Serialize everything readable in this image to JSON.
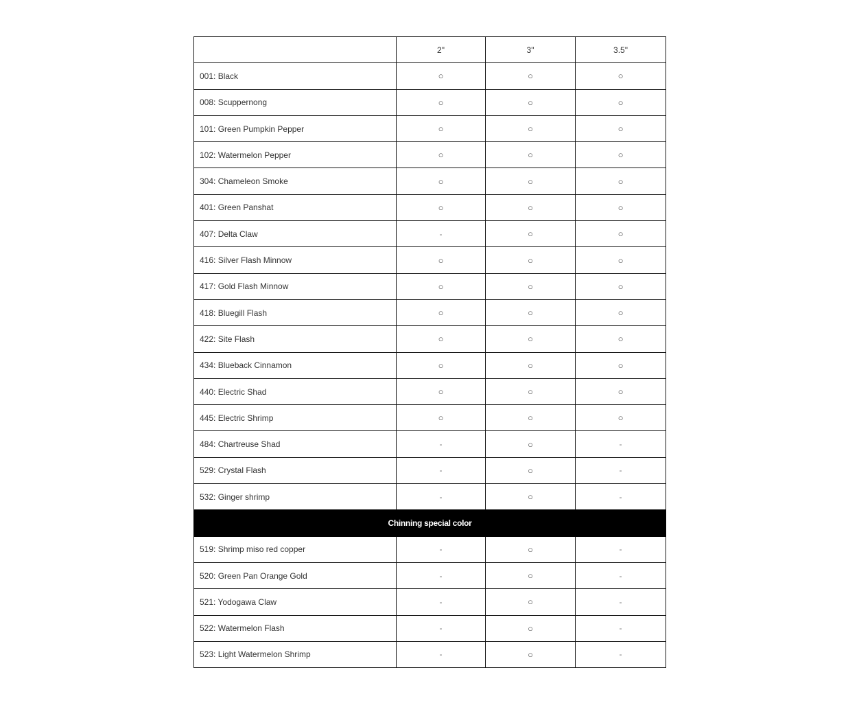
{
  "table": {
    "headers": [
      "",
      "2\"",
      "3\"",
      "3.5\""
    ],
    "rows": [
      {
        "name": "001: Black",
        "values": [
          "○",
          "○",
          "○"
        ]
      },
      {
        "name": "008: Scuppernong",
        "values": [
          "○",
          "○",
          "○"
        ]
      },
      {
        "name": "101: Green Pumpkin Pepper",
        "values": [
          "○",
          "○",
          "○"
        ]
      },
      {
        "name": "102: Watermelon Pepper",
        "values": [
          "○",
          "○",
          "○"
        ]
      },
      {
        "name": "304: Chameleon Smoke",
        "values": [
          "○",
          "○",
          "○"
        ]
      },
      {
        "name": "401: Green Panshat",
        "values": [
          "○",
          "○",
          "○"
        ]
      },
      {
        "name": "407: Delta Claw",
        "values": [
          "-",
          "○",
          "○"
        ]
      },
      {
        "name": "416: Silver Flash Minnow",
        "values": [
          "○",
          "○",
          "○"
        ]
      },
      {
        "name": "417: Gold Flash Minnow",
        "values": [
          "○",
          "○",
          "○"
        ]
      },
      {
        "name": "418: Bluegill Flash",
        "values": [
          "○",
          "○",
          "○"
        ]
      },
      {
        "name": "422: Site Flash",
        "values": [
          "○",
          "○",
          "○"
        ]
      },
      {
        "name": "434: Blueback Cinnamon",
        "values": [
          "○",
          "○",
          "○"
        ]
      },
      {
        "name": "440: Electric Shad",
        "values": [
          "○",
          "○",
          "○"
        ]
      },
      {
        "name": "445: Electric Shrimp",
        "values": [
          "○",
          "○",
          "○"
        ]
      },
      {
        "name": "484: Chartreuse Shad",
        "values": [
          "-",
          "○",
          "-"
        ]
      },
      {
        "name": "529: Crystal Flash",
        "values": [
          "-",
          "○",
          "-"
        ]
      },
      {
        "name": "532: Ginger shrimp",
        "values": [
          "-",
          "○",
          "-"
        ]
      },
      {
        "section": "Chinning special color"
      },
      {
        "name": "519: Shrimp miso red copper",
        "values": [
          "-",
          "○",
          "-"
        ]
      },
      {
        "name": "520: Green Pan Orange Gold",
        "values": [
          "-",
          "○",
          "-"
        ]
      },
      {
        "name": "521: Yodogawa Claw",
        "values": [
          "-",
          "○",
          "-"
        ]
      },
      {
        "name": "522: Watermelon Flash",
        "values": [
          "-",
          "○",
          "-"
        ]
      },
      {
        "name": "523: Light Watermelon Shrimp",
        "values": [
          "-",
          "○",
          "-"
        ]
      }
    ]
  }
}
